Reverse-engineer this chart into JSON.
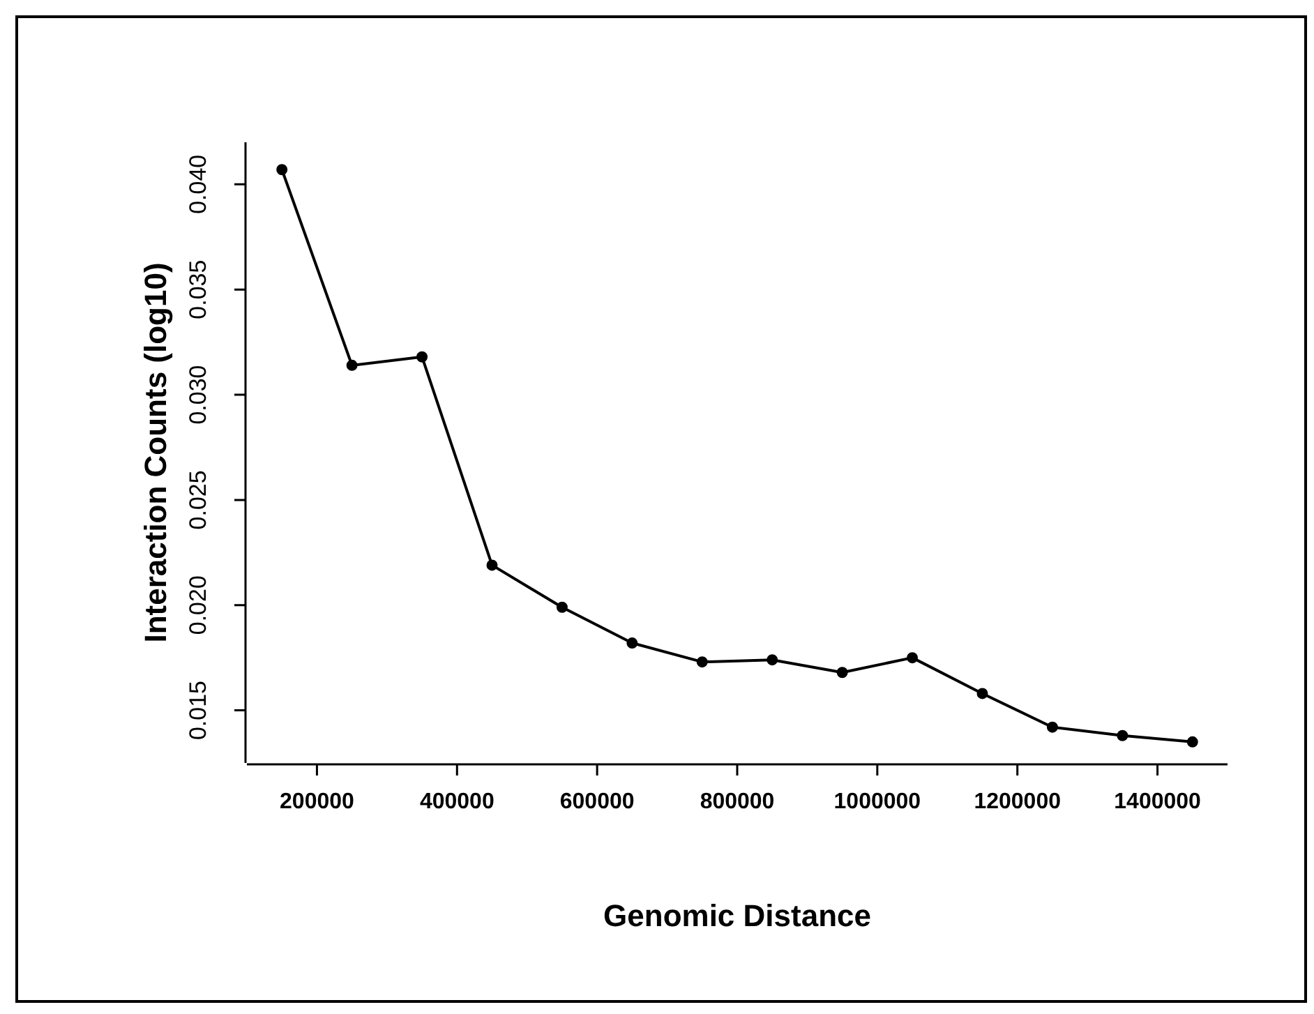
{
  "chart_data": {
    "type": "line",
    "xlabel": "Genomic Distance",
    "ylabel": "Interaction Counts (log10)",
    "x": [
      150000,
      250000,
      350000,
      450000,
      550000,
      650000,
      750000,
      850000,
      950000,
      1050000,
      1150000,
      1250000,
      1350000,
      1450000
    ],
    "series": [
      {
        "color": "#000000",
        "values": [
          0.0407,
          0.0314,
          0.0318,
          0.0219,
          0.0199,
          0.0182,
          0.0173,
          0.0174,
          0.0168,
          0.0175,
          0.0158,
          0.0142,
          0.0138,
          0.0135
        ]
      }
    ],
    "xlim": [
      100000,
      1500000
    ],
    "ylim": [
      0.0125,
      0.042
    ],
    "xticks": [
      200000,
      400000,
      600000,
      800000,
      1000000,
      1200000,
      1400000
    ],
    "yticks": [
      0.015,
      {
        "value": 0.02,
        "label": "0.020"
      },
      0.025,
      {
        "value": 0.03,
        "label": "0.030"
      },
      0.035,
      {
        "value": 0.04,
        "label": "0.040"
      }
    ],
    "grid": false,
    "legend": false,
    "marker": "circle",
    "line_style": "solid"
  }
}
